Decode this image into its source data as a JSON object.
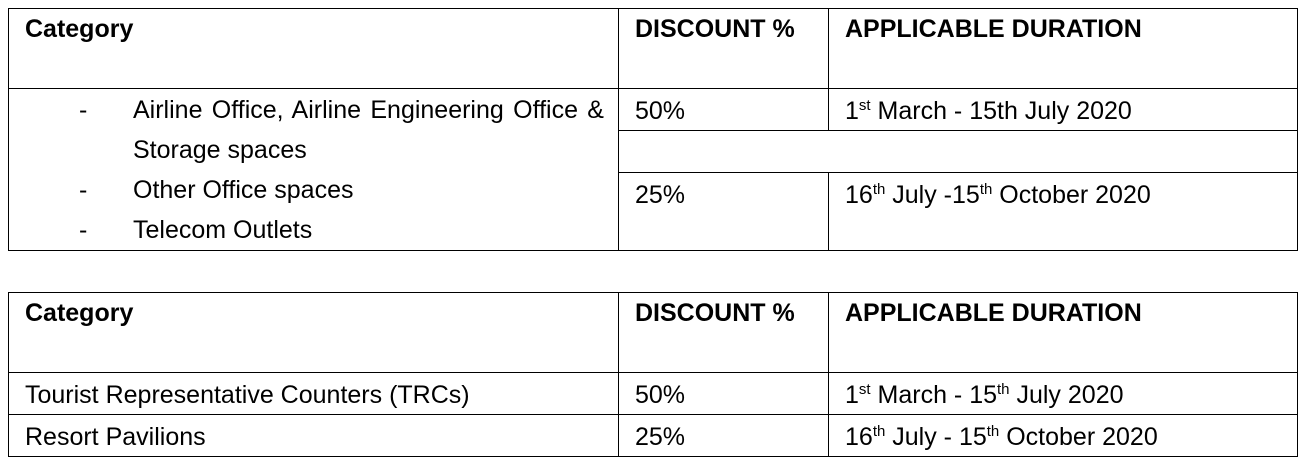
{
  "tables": [
    {
      "header": [
        "Category",
        "DISCOUNT %",
        "APPLICABLE DURATION"
      ],
      "category_items": [
        {
          "marker": "-",
          "text": "Airline Office, Airline Engineering Office  & Storage spaces"
        },
        {
          "marker": "-",
          "text": "Other Office spaces"
        },
        {
          "marker": "-",
          "text": "Telecom Outlets"
        }
      ],
      "rows": [
        {
          "discount": "50%",
          "duration": [
            {
              "text": "1"
            },
            {
              "sup": "st"
            },
            {
              "text": " March - 15th July 2020"
            }
          ]
        },
        {
          "discount": "25%",
          "duration": [
            {
              "text": "16"
            },
            {
              "sup": "th"
            },
            {
              "text": " July -15"
            },
            {
              "sup": "th"
            },
            {
              "text": " October 2020"
            }
          ]
        }
      ]
    },
    {
      "header": [
        "Category",
        "DISCOUNT %",
        "APPLICABLE DURATION"
      ],
      "rows": [
        {
          "category": "Tourist Representative Counters (TRCs)",
          "discount": "50%",
          "duration": [
            {
              "text": "1"
            },
            {
              "sup": "st"
            },
            {
              "text": " March - 15"
            },
            {
              "sup": "th"
            },
            {
              "text": " July 2020"
            }
          ]
        },
        {
          "category": "Resort Pavilions",
          "discount": "25%",
          "duration": [
            {
              "text": "16"
            },
            {
              "sup": "th"
            },
            {
              "text": " July - 15"
            },
            {
              "sup": "th"
            },
            {
              "text": " October 2020"
            }
          ]
        }
      ]
    }
  ]
}
